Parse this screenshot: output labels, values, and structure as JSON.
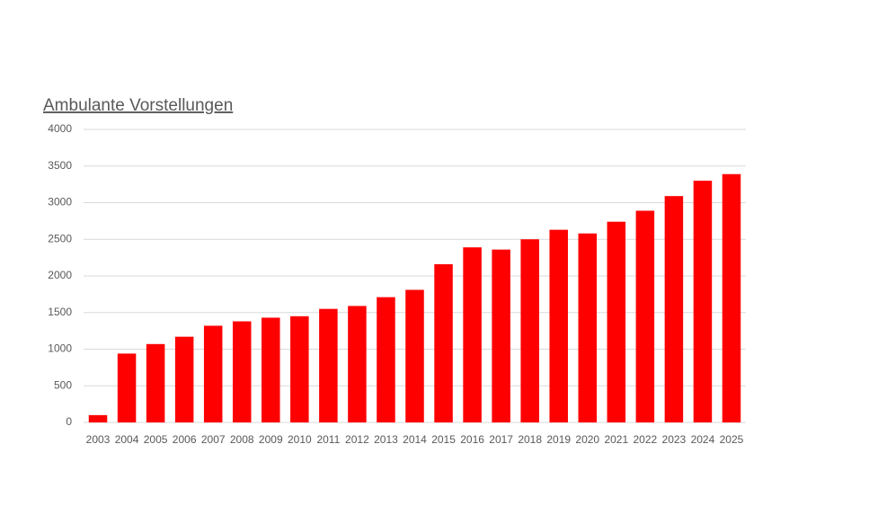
{
  "chart_data": {
    "type": "bar",
    "title": "Ambulante Vorstellungen",
    "categories": [
      "2003",
      "2004",
      "2005",
      "2006",
      "2007",
      "2008",
      "2009",
      "2010",
      "2011",
      "2012",
      "2013",
      "2014",
      "2015",
      "2016",
      "2017",
      "2018",
      "2019",
      "2020",
      "2021",
      "2022",
      "2023",
      "2024",
      "2025"
    ],
    "values": [
      100,
      940,
      1070,
      1170,
      1320,
      1380,
      1430,
      1450,
      1550,
      1590,
      1710,
      1810,
      2160,
      2390,
      2360,
      2500,
      2630,
      2580,
      2740,
      2890,
      3090,
      3300,
      3390
    ],
    "color": "#ff0000",
    "ylim": [
      0,
      4000
    ],
    "yticks": [
      0,
      500,
      1000,
      1500,
      2000,
      2500,
      3000,
      3500,
      4000
    ],
    "grid": true
  }
}
